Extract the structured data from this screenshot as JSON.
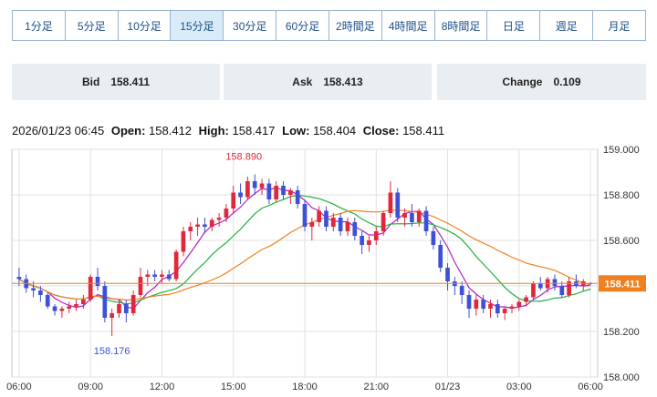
{
  "timeframes": [
    {
      "label": "1分足",
      "active": false
    },
    {
      "label": "5分足",
      "active": false
    },
    {
      "label": "10分足",
      "active": false
    },
    {
      "label": "15分足",
      "active": true
    },
    {
      "label": "30分足",
      "active": false
    },
    {
      "label": "60分足",
      "active": false
    },
    {
      "label": "2時間足",
      "active": false
    },
    {
      "label": "4時間足",
      "active": false
    },
    {
      "label": "8時間足",
      "active": false
    },
    {
      "label": "日足",
      "active": false
    },
    {
      "label": "週足",
      "active": false
    },
    {
      "label": "月足",
      "active": false
    }
  ],
  "quotes": {
    "bid_label": "Bid",
    "bid": "158.411",
    "ask_label": "Ask",
    "ask": "158.413",
    "change_label": "Change",
    "change": "0.109"
  },
  "ohlc": {
    "datetime": "2026/01/23 06:45",
    "open_label": "Open:",
    "open": "158.412",
    "high_label": "High:",
    "high": "158.417",
    "low_label": "Low:",
    "low": "158.404",
    "close_label": "Close:",
    "close": "158.411"
  },
  "colors": {
    "up": "#e0283c",
    "down": "#3c50d8",
    "ma_short": "#b020c8",
    "ma_mid": "#20b040",
    "ma_long": "#f08020",
    "price_line": "#f08020"
  },
  "chart_data": {
    "type": "candlestick",
    "ylim": [
      158.0,
      159.0
    ],
    "y_ticks": [
      "158.000",
      "158.200",
      "158.400",
      "158.600",
      "158.800",
      "159.000"
    ],
    "x_ticks": [
      "06:00",
      "09:00",
      "12:00",
      "15:00",
      "18:00",
      "21:00",
      "01/23",
      "03:00",
      "06:00"
    ],
    "current_price": "158.411",
    "high_annotation": "158.890",
    "low_annotation": "158.176",
    "grid": true,
    "candles": [
      [
        158.44,
        158.48,
        158.4,
        158.43
      ],
      [
        158.43,
        158.45,
        158.37,
        158.39
      ],
      [
        158.39,
        158.42,
        158.35,
        158.38
      ],
      [
        158.38,
        158.4,
        158.33,
        158.36
      ],
      [
        158.36,
        158.37,
        158.3,
        158.31
      ],
      [
        158.31,
        158.32,
        158.27,
        158.29
      ],
      [
        158.29,
        158.31,
        158.26,
        158.3
      ],
      [
        158.3,
        158.33,
        158.28,
        158.31
      ],
      [
        158.31,
        158.34,
        158.29,
        158.32
      ],
      [
        158.32,
        158.36,
        158.3,
        158.34
      ],
      [
        158.34,
        158.45,
        158.33,
        158.44
      ],
      [
        158.44,
        158.48,
        158.38,
        158.4
      ],
      [
        158.4,
        158.42,
        158.24,
        158.26
      ],
      [
        158.26,
        158.3,
        158.18,
        158.28
      ],
      [
        158.28,
        158.34,
        158.26,
        158.32
      ],
      [
        158.32,
        158.34,
        158.24,
        158.28
      ],
      [
        158.28,
        158.38,
        158.27,
        158.36
      ],
      [
        158.36,
        158.48,
        158.35,
        158.44
      ],
      [
        158.44,
        158.47,
        158.4,
        158.45
      ],
      [
        158.45,
        158.47,
        158.42,
        158.44
      ],
      [
        158.44,
        158.47,
        158.41,
        158.45
      ],
      [
        158.45,
        158.47,
        158.42,
        158.43
      ],
      [
        158.43,
        158.56,
        158.42,
        158.55
      ],
      [
        158.55,
        158.66,
        158.53,
        158.64
      ],
      [
        158.64,
        158.68,
        158.6,
        158.66
      ],
      [
        158.66,
        158.7,
        158.62,
        158.67
      ],
      [
        158.67,
        158.7,
        158.63,
        158.66
      ],
      [
        158.66,
        158.7,
        158.64,
        158.69
      ],
      [
        158.69,
        158.72,
        158.66,
        158.7
      ],
      [
        158.7,
        158.76,
        158.68,
        158.74
      ],
      [
        158.74,
        158.84,
        158.72,
        158.81
      ],
      [
        158.81,
        158.85,
        158.76,
        158.79
      ],
      [
        158.79,
        158.88,
        158.78,
        158.86
      ],
      [
        158.86,
        158.89,
        158.8,
        158.83
      ],
      [
        158.83,
        158.87,
        158.8,
        158.85
      ],
      [
        158.85,
        158.87,
        158.76,
        158.78
      ],
      [
        158.78,
        158.86,
        158.77,
        158.84
      ],
      [
        158.84,
        158.86,
        158.78,
        158.8
      ],
      [
        158.8,
        158.83,
        158.76,
        158.82
      ],
      [
        158.82,
        158.84,
        158.74,
        158.76
      ],
      [
        158.76,
        158.78,
        158.64,
        158.66
      ],
      [
        158.66,
        158.7,
        158.6,
        158.68
      ],
      [
        158.68,
        158.75,
        158.66,
        158.73
      ],
      [
        158.73,
        158.75,
        158.64,
        158.66
      ],
      [
        158.66,
        158.72,
        158.64,
        158.7
      ],
      [
        158.7,
        158.72,
        158.62,
        158.64
      ],
      [
        158.64,
        158.7,
        158.62,
        158.68
      ],
      [
        158.68,
        158.7,
        158.6,
        158.62
      ],
      [
        158.62,
        158.64,
        158.54,
        158.58
      ],
      [
        158.58,
        158.62,
        158.55,
        158.6
      ],
      [
        158.6,
        158.66,
        158.58,
        158.64
      ],
      [
        158.64,
        158.73,
        158.62,
        158.72
      ],
      [
        158.72,
        158.86,
        158.7,
        158.81
      ],
      [
        158.81,
        158.83,
        158.68,
        158.7
      ],
      [
        158.7,
        158.74,
        158.66,
        158.72
      ],
      [
        158.72,
        158.76,
        158.66,
        158.68
      ],
      [
        158.68,
        158.74,
        158.66,
        158.73
      ],
      [
        158.73,
        158.75,
        158.62,
        158.64
      ],
      [
        158.64,
        158.66,
        158.56,
        158.58
      ],
      [
        158.58,
        158.6,
        158.46,
        158.48
      ],
      [
        158.48,
        158.5,
        158.38,
        158.42
      ],
      [
        158.42,
        158.44,
        158.36,
        158.4
      ],
      [
        158.4,
        158.42,
        158.32,
        158.36
      ],
      [
        158.36,
        158.38,
        158.26,
        158.3
      ],
      [
        158.3,
        158.36,
        158.27,
        158.34
      ],
      [
        158.34,
        158.36,
        158.28,
        158.3
      ],
      [
        158.3,
        158.34,
        158.26,
        158.32
      ],
      [
        158.32,
        158.34,
        158.26,
        158.28
      ],
      [
        158.28,
        158.31,
        158.25,
        158.3
      ],
      [
        158.3,
        158.32,
        158.28,
        158.31
      ],
      [
        158.31,
        158.34,
        158.29,
        158.33
      ],
      [
        158.33,
        158.36,
        158.31,
        158.35
      ],
      [
        158.35,
        158.42,
        158.34,
        158.41
      ],
      [
        158.41,
        158.44,
        158.38,
        158.39
      ],
      [
        158.39,
        158.44,
        158.37,
        158.43
      ],
      [
        158.43,
        158.45,
        158.38,
        158.4
      ],
      [
        158.4,
        158.42,
        158.35,
        158.36
      ],
      [
        158.36,
        158.44,
        158.35,
        158.42
      ],
      [
        158.42,
        158.45,
        158.39,
        158.4
      ],
      [
        158.4,
        158.43,
        158.38,
        158.42
      ],
      [
        158.412,
        158.417,
        158.404,
        158.411
      ]
    ]
  }
}
